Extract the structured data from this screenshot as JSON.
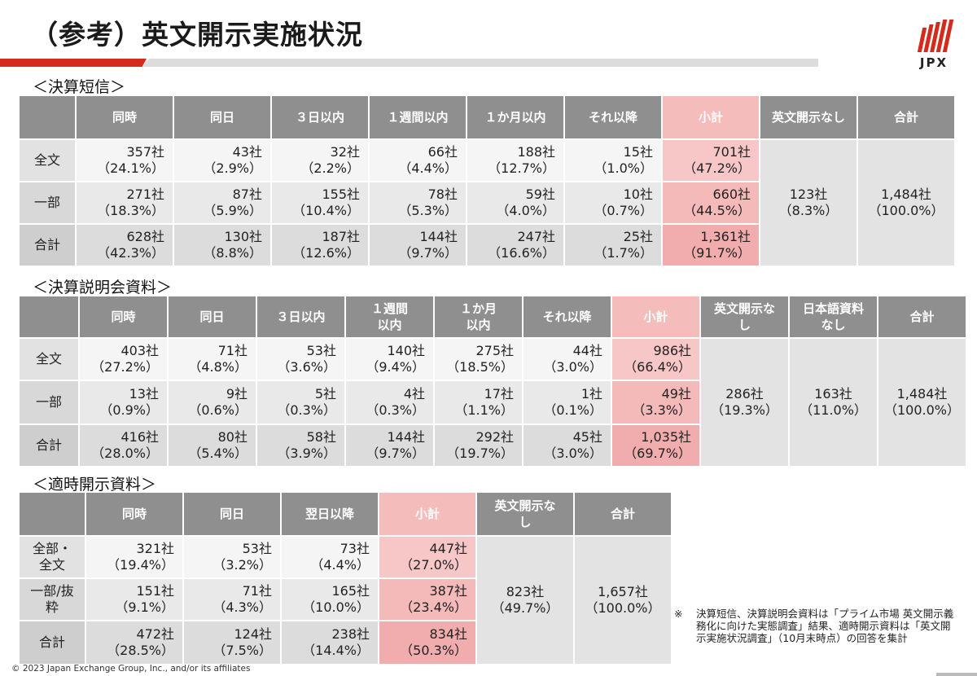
{
  "title": "（参考）英文開示実施状況",
  "logo": {
    "text": "JPX"
  },
  "tables": [
    {
      "heading": "＜決算短信＞",
      "headers": [
        "同時",
        "同日",
        "３日以内",
        "１週間以内",
        "１か月以内",
        "それ以降",
        "小計",
        "英文開示なし",
        "合計"
      ],
      "rows": [
        {
          "label": "全文",
          "cells": [
            [
              "357社",
              "（24.1%）"
            ],
            [
              "43社",
              "（2.9%）"
            ],
            [
              "32社",
              "（2.2%）"
            ],
            [
              "66社",
              "（4.4%）"
            ],
            [
              "188社",
              "（12.7%）"
            ],
            [
              "15社",
              "（1.0%）"
            ],
            [
              "701社",
              "（47.2%）"
            ]
          ]
        },
        {
          "label": "一部",
          "cells": [
            [
              "271社",
              "（18.3%）"
            ],
            [
              "87社",
              "（5.9%）"
            ],
            [
              "155社",
              "（10.4%）"
            ],
            [
              "78社",
              "（5.3%）"
            ],
            [
              "59社",
              "（4.0%）"
            ],
            [
              "10社",
              "（0.7%）"
            ],
            [
              "660社",
              "（44.5%）"
            ]
          ]
        },
        {
          "label": "合計",
          "cells": [
            [
              "628社",
              "（42.3%）"
            ],
            [
              "130社",
              "（8.8%）"
            ],
            [
              "187社",
              "（12.6%）"
            ],
            [
              "144社",
              "（9.7%）"
            ],
            [
              "247社",
              "（16.6%）"
            ],
            [
              "25社",
              "（1.7%）"
            ],
            [
              "1,361社",
              "（91.7%）"
            ]
          ]
        }
      ],
      "spans": [
        [
          "123社",
          "（8.3%）"
        ],
        [
          "1,484社",
          "（100.0%）"
        ]
      ]
    },
    {
      "heading": "＜決算説明会資料＞",
      "headers": [
        "同時",
        "同日",
        "３日以内",
        "１週間以内",
        "１か月以内",
        "それ以降",
        "小計",
        "英文開示なし",
        "日本語資料なし",
        "合計"
      ],
      "rows": [
        {
          "label": "全文",
          "cells": [
            [
              "403社",
              "（27.2%）"
            ],
            [
              "71社",
              "（4.8%）"
            ],
            [
              "53社",
              "（3.6%）"
            ],
            [
              "140社",
              "（9.4%）"
            ],
            [
              "275社",
              "（18.5%）"
            ],
            [
              "44社",
              "（3.0%）"
            ],
            [
              "986社",
              "（66.4%）"
            ]
          ]
        },
        {
          "label": "一部",
          "cells": [
            [
              "13社",
              "（0.9%）"
            ],
            [
              "9社",
              "（0.6%）"
            ],
            [
              "5社",
              "（0.3%）"
            ],
            [
              "4社",
              "（0.3%）"
            ],
            [
              "17社",
              "（1.1%）"
            ],
            [
              "1社",
              "（0.1%）"
            ],
            [
              "49社",
              "（3.3%）"
            ]
          ]
        },
        {
          "label": "合計",
          "cells": [
            [
              "416社",
              "（28.0%）"
            ],
            [
              "80社",
              "（5.4%）"
            ],
            [
              "58社",
              "（3.9%）"
            ],
            [
              "144社",
              "（9.7%）"
            ],
            [
              "292社",
              "（19.7%）"
            ],
            [
              "45社",
              "（3.0%）"
            ],
            [
              "1,035社",
              "（69.7%）"
            ]
          ]
        }
      ],
      "spans": [
        [
          "286社",
          "（19.3%）"
        ],
        [
          "163社",
          "（11.0%）"
        ],
        [
          "1,484社",
          "（100.0%）"
        ]
      ]
    },
    {
      "heading": "＜適時開示資料＞",
      "headers": [
        "同時",
        "同日",
        "翌日以降",
        "小計",
        "英文開示なし",
        "合計"
      ],
      "rows": [
        {
          "label": "全部・全文",
          "cells": [
            [
              "321社",
              "（19.4%）"
            ],
            [
              "53社",
              "（3.2%）"
            ],
            [
              "73社",
              "（4.4%）"
            ],
            [
              "447社",
              "（27.0%）"
            ]
          ]
        },
        {
          "label": "一部/抜粋",
          "cells": [
            [
              "151社",
              "（9.1%）"
            ],
            [
              "71社",
              "（4.3%）"
            ],
            [
              "165社",
              "（10.0%）"
            ],
            [
              "387社",
              "（23.4%）"
            ]
          ]
        },
        {
          "label": "合計",
          "cells": [
            [
              "472社",
              "（28.5%）"
            ],
            [
              "124社",
              "（7.5%）"
            ],
            [
              "238社",
              "（14.4%）"
            ],
            [
              "834社",
              "（50.3%）"
            ]
          ]
        }
      ],
      "spans": [
        [
          "823社",
          "（49.7%）"
        ],
        [
          "1,657社",
          "（100.0%）"
        ]
      ]
    }
  ],
  "note": {
    "mark": "※",
    "text": "決算短信、決算説明会資料は「プライム市場 英文開示義務化に向けた実態調査」結果、適時開示資料は「英文開示実施状況調査」（10月末時点）の回答を集計"
  },
  "footer": "© 2023 Japan Exchange Group, Inc., and/or its affiliates",
  "colors": {
    "accent": "#d52b1e",
    "header_gray": "#8f8f8f",
    "subtotal_pink": "#f5bcbc"
  }
}
